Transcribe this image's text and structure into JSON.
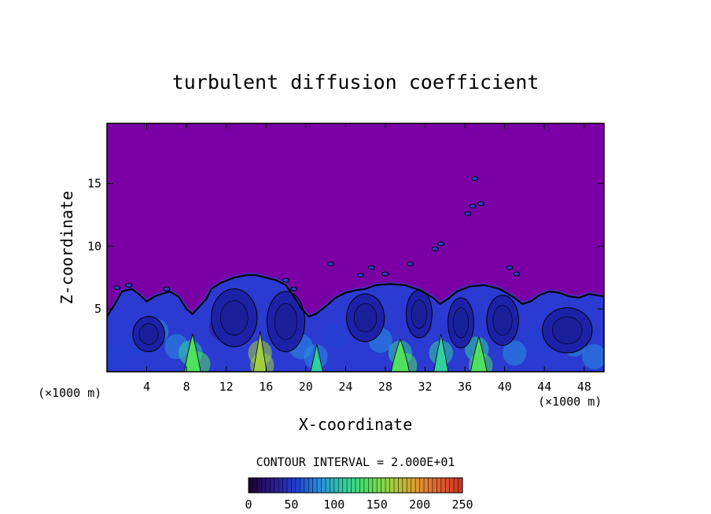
{
  "chart_data": {
    "type": "heatmap",
    "title": "turbulent diffusion coefficient",
    "xlabel": "X-coordinate",
    "ylabel": "Z-coordinate",
    "x_units_left": "(×1000 m)",
    "x_units_right": "(×1000 m)",
    "xlim": [
      0,
      50
    ],
    "ylim": [
      0,
      19.8
    ],
    "x_ticks": [
      4,
      8,
      12,
      16,
      20,
      24,
      28,
      32,
      36,
      40,
      44,
      48
    ],
    "y_ticks": [
      5,
      10,
      15
    ],
    "contour_interval_text": "CONTOUR INTERVAL = 2.000E+01",
    "colorbar": {
      "min": 0,
      "max": 250,
      "ticks": [
        0,
        50,
        100,
        150,
        200,
        250
      ],
      "colors": [
        "#1a0033",
        "#2a1a8c",
        "#2040d0",
        "#2a90e0",
        "#30d0a0",
        "#50e060",
        "#a0d040",
        "#e0a030",
        "#e06030",
        "#d03020"
      ]
    },
    "background_color": "#7a00a6",
    "boundary_layer_top": [
      [
        0.0,
        4.4
      ],
      [
        0.8,
        5.4
      ],
      [
        1.5,
        6.4
      ],
      [
        2.5,
        6.6
      ],
      [
        3.2,
        6.2
      ],
      [
        4.0,
        5.6
      ],
      [
        4.8,
        6.0
      ],
      [
        5.5,
        6.2
      ],
      [
        6.3,
        6.4
      ],
      [
        7.2,
        6.0
      ],
      [
        8.0,
        5.0
      ],
      [
        8.6,
        4.6
      ],
      [
        9.3,
        5.2
      ],
      [
        10.0,
        5.8
      ],
      [
        10.5,
        6.6
      ],
      [
        11.5,
        7.1
      ],
      [
        12.8,
        7.5
      ],
      [
        14.0,
        7.7
      ],
      [
        15.0,
        7.7
      ],
      [
        16.0,
        7.5
      ],
      [
        17.0,
        7.3
      ],
      [
        18.0,
        6.9
      ],
      [
        18.8,
        6.0
      ],
      [
        19.6,
        5.0
      ],
      [
        20.3,
        4.4
      ],
      [
        21.0,
        4.6
      ],
      [
        22.0,
        5.2
      ],
      [
        23.0,
        5.9
      ],
      [
        24.0,
        6.3
      ],
      [
        25.0,
        6.5
      ],
      [
        26.0,
        6.6
      ],
      [
        27.0,
        6.9
      ],
      [
        28.5,
        7.0
      ],
      [
        30.0,
        6.9
      ],
      [
        31.5,
        6.5
      ],
      [
        32.8,
        5.9
      ],
      [
        33.5,
        5.4
      ],
      [
        34.3,
        5.8
      ],
      [
        35.2,
        6.4
      ],
      [
        36.5,
        6.8
      ],
      [
        38.0,
        6.9
      ],
      [
        39.5,
        6.6
      ],
      [
        40.8,
        6.0
      ],
      [
        41.8,
        5.4
      ],
      [
        42.6,
        5.6
      ],
      [
        43.5,
        6.1
      ],
      [
        44.5,
        6.4
      ],
      [
        45.5,
        6.3
      ],
      [
        46.5,
        6.0
      ],
      [
        47.5,
        5.9
      ],
      [
        48.5,
        6.2
      ],
      [
        50.0,
        6.0
      ]
    ],
    "cells": [
      {
        "x": 1.0,
        "z": 1.2,
        "v": 60
      },
      {
        "x": 3.0,
        "z": 2.2,
        "v": 50
      },
      {
        "x": 5.0,
        "z": 3.2,
        "v": 70
      },
      {
        "x": 7.0,
        "z": 2.0,
        "v": 95
      },
      {
        "x": 8.4,
        "z": 1.5,
        "v": 120
      },
      {
        "x": 9.2,
        "z": 0.6,
        "v": 150
      },
      {
        "x": 11.5,
        "z": 3.5,
        "v": 40
      },
      {
        "x": 13.5,
        "z": 4.5,
        "v": 35
      },
      {
        "x": 15.4,
        "z": 1.5,
        "v": 160
      },
      {
        "x": 15.6,
        "z": 0.5,
        "v": 180
      },
      {
        "x": 17.5,
        "z": 3.8,
        "v": 45
      },
      {
        "x": 19.5,
        "z": 2.0,
        "v": 70
      },
      {
        "x": 21.0,
        "z": 1.2,
        "v": 90
      },
      {
        "x": 23.0,
        "z": 2.8,
        "v": 60
      },
      {
        "x": 25.5,
        "z": 3.5,
        "v": 40
      },
      {
        "x": 27.5,
        "z": 2.5,
        "v": 80
      },
      {
        "x": 29.5,
        "z": 1.5,
        "v": 110
      },
      {
        "x": 30.0,
        "z": 0.5,
        "v": 140
      },
      {
        "x": 31.5,
        "z": 3.8,
        "v": 40
      },
      {
        "x": 33.6,
        "z": 1.5,
        "v": 100
      },
      {
        "x": 35.5,
        "z": 4.2,
        "v": 45
      },
      {
        "x": 37.2,
        "z": 1.8,
        "v": 110
      },
      {
        "x": 37.6,
        "z": 0.5,
        "v": 150
      },
      {
        "x": 39.5,
        "z": 3.5,
        "v": 50
      },
      {
        "x": 41.0,
        "z": 1.5,
        "v": 95
      },
      {
        "x": 43.0,
        "z": 2.5,
        "v": 65
      },
      {
        "x": 45.0,
        "z": 3.2,
        "v": 55
      },
      {
        "x": 47.0,
        "z": 2.2,
        "v": 80
      },
      {
        "x": 49.0,
        "z": 1.2,
        "v": 90
      }
    ],
    "plumes": [
      {
        "x": 8.6,
        "w": 1.0,
        "ztop": 3.0,
        "v": 140
      },
      {
        "x": 15.4,
        "w": 0.7,
        "ztop": 3.2,
        "v": 170
      },
      {
        "x": 21.1,
        "w": 0.6,
        "ztop": 2.2,
        "v": 120
      },
      {
        "x": 29.5,
        "w": 1.2,
        "ztop": 2.6,
        "v": 130
      },
      {
        "x": 33.6,
        "w": 0.8,
        "ztop": 3.0,
        "v": 120
      },
      {
        "x": 37.4,
        "w": 1.0,
        "ztop": 2.8,
        "v": 140
      }
    ],
    "eddies": [
      {
        "x": 4.2,
        "z": 3.0,
        "rx": 1.6,
        "rz": 1.4
      },
      {
        "x": 12.8,
        "z": 4.3,
        "rx": 2.3,
        "rz": 2.3
      },
      {
        "x": 18.0,
        "z": 4.0,
        "rx": 1.9,
        "rz": 2.4
      },
      {
        "x": 26.0,
        "z": 4.3,
        "rx": 1.9,
        "rz": 1.9
      },
      {
        "x": 31.4,
        "z": 4.6,
        "rx": 1.3,
        "rz": 1.9
      },
      {
        "x": 35.6,
        "z": 3.9,
        "rx": 1.3,
        "rz": 2.0
      },
      {
        "x": 39.8,
        "z": 4.1,
        "rx": 1.6,
        "rz": 2.0
      },
      {
        "x": 46.3,
        "z": 3.3,
        "rx": 2.5,
        "rz": 1.8
      }
    ],
    "blobs": [
      {
        "x": 18.0,
        "z": 7.3
      },
      {
        "x": 18.8,
        "z": 6.6
      },
      {
        "x": 25.5,
        "z": 7.7
      },
      {
        "x": 26.6,
        "z": 8.3
      },
      {
        "x": 28.0,
        "z": 7.8
      },
      {
        "x": 30.5,
        "z": 8.6
      },
      {
        "x": 33.0,
        "z": 9.8
      },
      {
        "x": 33.6,
        "z": 10.2
      },
      {
        "x": 36.3,
        "z": 12.6
      },
      {
        "x": 36.8,
        "z": 13.2
      },
      {
        "x": 37.6,
        "z": 13.4
      },
      {
        "x": 40.5,
        "z": 8.3
      },
      {
        "x": 41.2,
        "z": 7.8
      },
      {
        "x": 1.0,
        "z": 6.7
      },
      {
        "x": 2.2,
        "z": 6.9
      },
      {
        "x": 6.0,
        "z": 6.6
      },
      {
        "x": 22.5,
        "z": 8.6
      },
      {
        "x": 37.0,
        "z": 15.4
      }
    ]
  }
}
